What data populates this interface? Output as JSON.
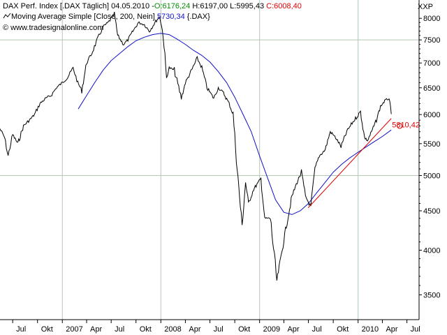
{
  "header": {
    "row1": {
      "instrument": "DAX Perf. Index [.DAX Täglich]",
      "date": "04.05.2010",
      "sep": "-",
      "open": "O:6176,24",
      "high": "H:6197,00",
      "low": "L:5995,43",
      "close": "C:6008,40"
    },
    "row2": {
      "icon": "moving-average-icon",
      "label": "Moving Average Simple [Close, 200, Nein]",
      "value": "5730,34",
      "suffix": "{.DAX}"
    },
    "row3": {
      "icon": "copyright-icon",
      "label": "© www.tradesignalonline.com"
    },
    "scale_label": "XXP"
  },
  "colors": {
    "price": "#000000",
    "ma": "#1010c8",
    "trend": "#e00000",
    "up": "#009000",
    "down": "#e00000",
    "grid": "#b4c8b4",
    "axis": "#000000"
  },
  "chart_data": {
    "type": "line",
    "title": "DAX Perf. Index [.DAX Täglich]",
    "y_scale": "log",
    "ylim": [
      3250,
      8450
    ],
    "xlim": [
      "2006-05-15",
      "2010-08-15"
    ],
    "grid": true,
    "y_ticks": [
      3500,
      4000,
      4500,
      5000,
      5500,
      6000,
      6500,
      7000,
      7500,
      8000
    ],
    "y_tick_labels": [
      "3500",
      "4000",
      "4500",
      "5000",
      "5500",
      "6000",
      "6500",
      "7000",
      "7500",
      "8000"
    ],
    "x_ticks": [
      {
        "date": "2006-07-01",
        "label": "Jul"
      },
      {
        "date": "2006-10-01",
        "label": "Okt"
      },
      {
        "date": "2007-01-01",
        "label": "2007"
      },
      {
        "date": "2007-04-01",
        "label": "Apr"
      },
      {
        "date": "2007-07-01",
        "label": "Jul"
      },
      {
        "date": "2007-10-01",
        "label": "Okt"
      },
      {
        "date": "2008-01-01",
        "label": "2008"
      },
      {
        "date": "2008-04-01",
        "label": "Apr"
      },
      {
        "date": "2008-07-01",
        "label": "Jul"
      },
      {
        "date": "2008-10-01",
        "label": "Okt"
      },
      {
        "date": "2009-01-01",
        "label": "2009"
      },
      {
        "date": "2009-04-01",
        "label": "Apr"
      },
      {
        "date": "2009-07-01",
        "label": "Jul"
      },
      {
        "date": "2009-10-01",
        "label": "Okt"
      },
      {
        "date": "2010-01-01",
        "label": "2010"
      },
      {
        "date": "2010-04-01",
        "label": "Apr"
      },
      {
        "date": "2010-07-01",
        "label": "Jul"
      }
    ],
    "series": [
      {
        "name": "DAX Perf. Index",
        "x": [
          "2006-05-15",
          "2006-06-01",
          "2006-06-14",
          "2006-07-01",
          "2006-07-20",
          "2006-08-10",
          "2006-09-01",
          "2006-09-20",
          "2006-10-10",
          "2006-11-01",
          "2006-11-20",
          "2006-12-10",
          "2007-01-01",
          "2007-01-20",
          "2007-02-10",
          "2007-02-27",
          "2007-03-14",
          "2007-04-01",
          "2007-04-20",
          "2007-05-10",
          "2007-06-01",
          "2007-06-20",
          "2007-07-13",
          "2007-07-25",
          "2007-08-16",
          "2007-09-01",
          "2007-09-20",
          "2007-10-10",
          "2007-11-01",
          "2007-11-20",
          "2007-12-10",
          "2007-12-28",
          "2008-01-10",
          "2008-01-22",
          "2008-02-01",
          "2008-02-20",
          "2008-03-17",
          "2008-04-01",
          "2008-04-20",
          "2008-05-15",
          "2008-06-01",
          "2008-06-20",
          "2008-07-15",
          "2008-08-01",
          "2008-08-20",
          "2008-09-10",
          "2008-09-25",
          "2008-10-10",
          "2008-10-28",
          "2008-11-10",
          "2008-11-21",
          "2008-12-10",
          "2009-01-06",
          "2009-01-20",
          "2009-02-10",
          "2009-03-06",
          "2009-03-20",
          "2009-04-10",
          "2009-05-01",
          "2009-05-20",
          "2009-06-05",
          "2009-06-20",
          "2009-07-10",
          "2009-07-25",
          "2009-08-10",
          "2009-09-01",
          "2009-09-20",
          "2009-10-10",
          "2009-10-30",
          "2009-11-20",
          "2009-12-10",
          "2010-01-10",
          "2010-01-25",
          "2010-02-05",
          "2010-02-20",
          "2010-03-10",
          "2010-03-25",
          "2010-04-10",
          "2010-04-26",
          "2010-05-04"
        ],
        "values": [
          5750,
          5600,
          5300,
          5650,
          5500,
          5800,
          5900,
          6000,
          6200,
          6300,
          6350,
          6500,
          6600,
          6700,
          6900,
          6600,
          6450,
          7000,
          7200,
          7500,
          7800,
          7900,
          8100,
          7600,
          7400,
          7500,
          7700,
          7900,
          7850,
          7700,
          7900,
          8050,
          7600,
          6700,
          6900,
          6850,
          6300,
          6600,
          6800,
          7100,
          6900,
          6500,
          6300,
          6500,
          6400,
          6200,
          6000,
          5100,
          4300,
          4900,
          4600,
          4800,
          4950,
          4400,
          4400,
          3650,
          3900,
          4300,
          4700,
          4900,
          5050,
          4700,
          4550,
          5100,
          5300,
          5400,
          5700,
          5600,
          5450,
          5700,
          5850,
          6050,
          5600,
          5550,
          5700,
          5900,
          6150,
          6250,
          6300,
          6008
        ]
      },
      {
        "name": "Moving Average Simple [Close, 200, Nein]",
        "x": [
          "2007-03-01",
          "2007-04-01",
          "2007-05-01",
          "2007-06-01",
          "2007-07-01",
          "2007-08-01",
          "2007-09-01",
          "2007-10-01",
          "2007-11-01",
          "2007-12-01",
          "2008-01-01",
          "2008-02-01",
          "2008-03-01",
          "2008-04-01",
          "2008-05-01",
          "2008-06-01",
          "2008-07-01",
          "2008-08-01",
          "2008-09-01",
          "2008-10-01",
          "2008-11-01",
          "2008-12-01",
          "2009-01-01",
          "2009-02-01",
          "2009-03-01",
          "2009-04-01",
          "2009-05-01",
          "2009-06-01",
          "2009-07-01",
          "2009-08-01",
          "2009-09-01",
          "2009-10-01",
          "2009-11-01",
          "2009-12-01",
          "2010-01-01",
          "2010-02-01",
          "2010-03-01",
          "2010-04-01",
          "2010-05-04"
        ],
        "values": [
          6100,
          6350,
          6600,
          6850,
          7050,
          7200,
          7350,
          7480,
          7560,
          7620,
          7650,
          7620,
          7520,
          7400,
          7270,
          7160,
          7020,
          6820,
          6600,
          6320,
          6000,
          5700,
          5300,
          4950,
          4650,
          4480,
          4450,
          4500,
          4600,
          4750,
          4900,
          5050,
          5170,
          5270,
          5360,
          5450,
          5530,
          5620,
          5730
        ]
      },
      {
        "name": "trend",
        "x": [
          "2009-06-30",
          "2010-05-04"
        ],
        "values": [
          4540,
          5930
        ]
      }
    ],
    "annotations": [
      {
        "x": "2010-05-04",
        "y": 5810.42,
        "label": "5810,42"
      }
    ]
  }
}
